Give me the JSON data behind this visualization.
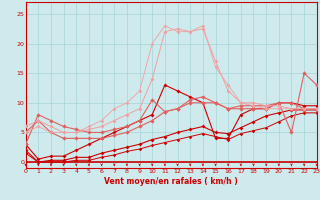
{
  "xlabel": "Vent moyen/en rafales ( km/h )",
  "xlim": [
    0,
    23
  ],
  "ylim": [
    -1,
    27
  ],
  "xticks": [
    0,
    1,
    2,
    3,
    4,
    5,
    6,
    7,
    8,
    9,
    10,
    11,
    12,
    13,
    14,
    15,
    16,
    17,
    18,
    19,
    20,
    21,
    22,
    23
  ],
  "yticks": [
    0,
    5,
    10,
    15,
    20,
    25
  ],
  "bg_color": "#ceeaed",
  "grid_color": "#a8d4d8",
  "red_dark": "#cc0000",
  "red_mid": "#e06060",
  "red_light": "#f0a0a0",
  "series": [
    {
      "x": [
        0,
        1,
        2,
        3,
        4,
        5,
        6,
        7,
        8,
        9,
        10,
        11,
        12,
        13,
        14,
        15,
        16,
        17,
        18,
        19,
        20,
        21,
        22,
        23
      ],
      "y": [
        3,
        0.5,
        1,
        1,
        2,
        3,
        4,
        5,
        6,
        7,
        8,
        13,
        12,
        11,
        10,
        4,
        4,
        8,
        9,
        9,
        10,
        10,
        9.5,
        9.5
      ],
      "color": "#cc0000",
      "lw": 0.8,
      "ms": 2.0
    },
    {
      "x": [
        0,
        1,
        2,
        3,
        4,
        5,
        6,
        7,
        8,
        9,
        10,
        11,
        12,
        13,
        14,
        15,
        16,
        17,
        18,
        19,
        20,
        21,
        22,
        23
      ],
      "y": [
        2,
        0,
        0.3,
        0.3,
        0.8,
        0.8,
        1.5,
        2,
        2.5,
        3,
        3.8,
        4.3,
        5,
        5.5,
        6,
        5,
        4.8,
        5.8,
        6.8,
        7.8,
        8.3,
        8.8,
        8.8,
        8.8
      ],
      "color": "#cc0000",
      "lw": 0.8,
      "ms": 2.0
    },
    {
      "x": [
        0,
        1,
        2,
        3,
        4,
        5,
        6,
        7,
        8,
        9,
        10,
        11,
        12,
        13,
        14,
        15,
        16,
        17,
        18,
        19,
        20,
        21,
        22,
        23
      ],
      "y": [
        1.5,
        0,
        0,
        0,
        0.3,
        0.3,
        0.8,
        1.2,
        1.8,
        2.2,
        2.8,
        3.3,
        3.8,
        4.3,
        4.8,
        4.3,
        3.8,
        4.8,
        5.3,
        5.8,
        6.8,
        7.8,
        8.3,
        8.3
      ],
      "color": "#cc0000",
      "lw": 0.7,
      "ms": 1.8
    },
    {
      "x": [
        0,
        1,
        2,
        3,
        4,
        5,
        6,
        7,
        8,
        9,
        10,
        11,
        12,
        13,
        14,
        15,
        16,
        17,
        18,
        19,
        20,
        21,
        22,
        23
      ],
      "y": [
        5,
        7,
        5,
        4,
        4,
        4,
        4,
        4.5,
        5,
        6,
        7,
        8.5,
        9,
        10,
        10,
        10,
        9,
        9.5,
        9.5,
        9.5,
        10,
        10,
        9,
        9
      ],
      "color": "#e06060",
      "lw": 0.8,
      "ms": 2.2
    },
    {
      "x": [
        0,
        1,
        2,
        3,
        4,
        5,
        6,
        7,
        8,
        9,
        10,
        11,
        12,
        13,
        14,
        15,
        16,
        17,
        18,
        19,
        20,
        21,
        22,
        23
      ],
      "y": [
        3,
        8,
        7,
        6,
        5.5,
        5,
        5,
        5.5,
        6,
        7,
        10.5,
        8.5,
        9,
        10.5,
        11,
        10,
        9,
        9,
        9,
        9,
        10,
        5,
        15,
        13
      ],
      "color": "#e06060",
      "lw": 0.8,
      "ms": 2.2
    },
    {
      "x": [
        0,
        1,
        2,
        3,
        4,
        5,
        6,
        7,
        8,
        9,
        10,
        11,
        12,
        13,
        14,
        15,
        16,
        17,
        18,
        19,
        20,
        21,
        22,
        23
      ],
      "y": [
        6,
        7,
        6,
        5,
        5,
        5.5,
        6,
        7,
        8,
        9,
        14,
        22,
        22.5,
        22,
        22.5,
        17,
        12,
        10,
        10,
        9.5,
        9.5,
        9,
        9,
        9
      ],
      "color": "#f0a0a0",
      "lw": 0.7,
      "ms": 2.0
    },
    {
      "x": [
        0,
        1,
        2,
        3,
        4,
        5,
        6,
        7,
        8,
        9,
        10,
        11,
        12,
        13,
        14,
        15,
        16,
        17,
        18,
        19,
        20,
        21,
        22,
        23
      ],
      "y": [
        5,
        6,
        5,
        5,
        5,
        6,
        7,
        9,
        10,
        12,
        20,
        23,
        22,
        22,
        23,
        16,
        13,
        10,
        9.5,
        9,
        9,
        9,
        9,
        9
      ],
      "color": "#f0a0a0",
      "lw": 0.6,
      "ms": 1.8
    }
  ]
}
